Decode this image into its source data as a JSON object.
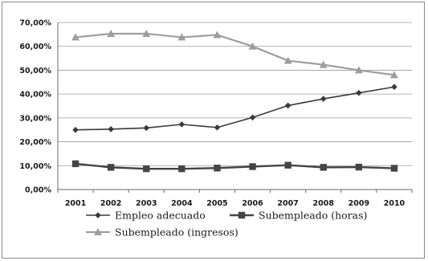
{
  "chart_data": {
    "type": "line",
    "title": "",
    "xlabel": "",
    "ylabel": "",
    "x": [
      "2001",
      "2002",
      "2003",
      "2004",
      "2005",
      "2006",
      "2007",
      "2008",
      "2009",
      "2010"
    ],
    "y_ticks": [
      "0,00%",
      "10,00%",
      "20,00%",
      "30,00%",
      "40,00%",
      "50,00%",
      "60,00%",
      "70,00%"
    ],
    "ylim": [
      0,
      70
    ],
    "grid": "horizontal",
    "legend_position": "bottom",
    "series": [
      {
        "name": "Empleo adecuado",
        "marker": "diamond",
        "color": "#3a3a3a",
        "values": [
          25.0,
          25.3,
          25.8,
          27.3,
          26.0,
          30.2,
          35.2,
          38.0,
          40.5,
          43.0
        ]
      },
      {
        "name": "Subempleado (horas)",
        "marker": "square",
        "color": "#444444",
        "values": [
          10.8,
          9.3,
          8.7,
          8.7,
          9.0,
          9.6,
          10.2,
          9.3,
          9.4,
          8.9
        ]
      },
      {
        "name": "Subempleado (ingresos)",
        "marker": "triangle",
        "color": "#9e9e9e",
        "values": [
          63.8,
          65.3,
          65.3,
          63.8,
          64.8,
          60.0,
          54.0,
          52.3,
          50.0,
          48.0
        ]
      }
    ]
  }
}
